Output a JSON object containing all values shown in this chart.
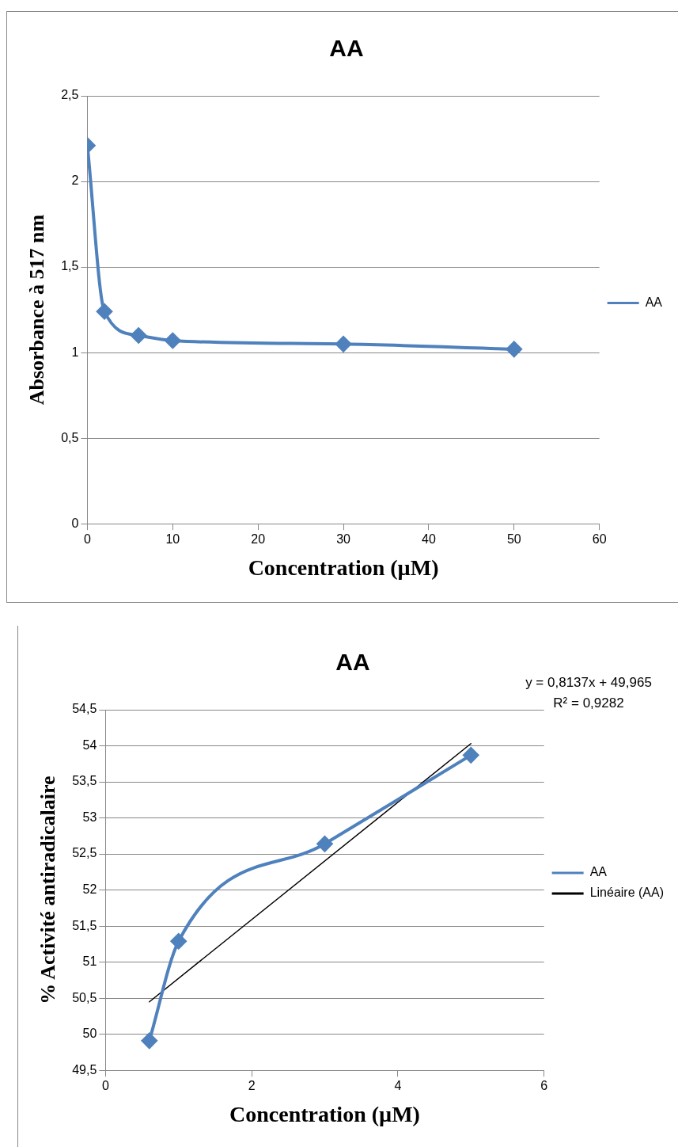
{
  "chart_data": [
    {
      "type": "line",
      "title": "AA",
      "xlabel": "Concentration (µM)",
      "ylabel": "Absorbance à 517 nm",
      "x": [
        0,
        2,
        6,
        10,
        30,
        50
      ],
      "series": [
        {
          "name": "AA",
          "color": "#4f81bd",
          "values": [
            2.21,
            1.24,
            1.1,
            1.07,
            1.05,
            1.02
          ]
        }
      ],
      "xlim": [
        0,
        60
      ],
      "xticks": [
        0,
        10,
        20,
        30,
        40,
        50,
        60
      ],
      "ylim": [
        0,
        2.5
      ],
      "yticks": [
        0,
        {
          "value": 0.5,
          "label": "0,5"
        },
        1,
        {
          "value": 1.5,
          "label": "1,5"
        },
        2,
        {
          "value": 2.5,
          "label": "2,5"
        }
      ],
      "grid": "y",
      "legend": "right",
      "marker": "diamond",
      "line_style": "solid"
    },
    {
      "type": "line",
      "title": "AA",
      "xlabel": "Concentration (µM)",
      "ylabel": "% Activité antiradicalaire",
      "x": [
        0.6,
        1,
        3,
        5
      ],
      "series": [
        {
          "name": "AA",
          "color": "#4f81bd",
          "values": [
            49.91,
            51.29,
            52.64,
            53.87
          ]
        },
        {
          "name": "Linéaire (AA)",
          "color": "#000000",
          "x": [
            0.6,
            5
          ],
          "values": [
            50.45,
            54.03
          ],
          "marker": "none"
        }
      ],
      "xlim": [
        0,
        6
      ],
      "xticks": [
        0,
        2,
        4,
        6
      ],
      "ylim": [
        49.5,
        54.5
      ],
      "yticks": [
        {
          "value": 49.5,
          "label": "49,5"
        },
        50,
        {
          "value": 50.5,
          "label": "50,5"
        },
        51,
        {
          "value": 51.5,
          "label": "51,5"
        },
        52,
        {
          "value": 52.5,
          "label": "52,5"
        },
        53,
        {
          "value": 53.5,
          "label": "53,5"
        },
        54,
        {
          "value": 54.5,
          "label": "54,5"
        }
      ],
      "annotations": [
        "y = 0,8137x + 49,965",
        "R² = 0,9282"
      ],
      "grid": "y",
      "legend": "right",
      "marker": "diamond",
      "line_style": "solid"
    }
  ]
}
